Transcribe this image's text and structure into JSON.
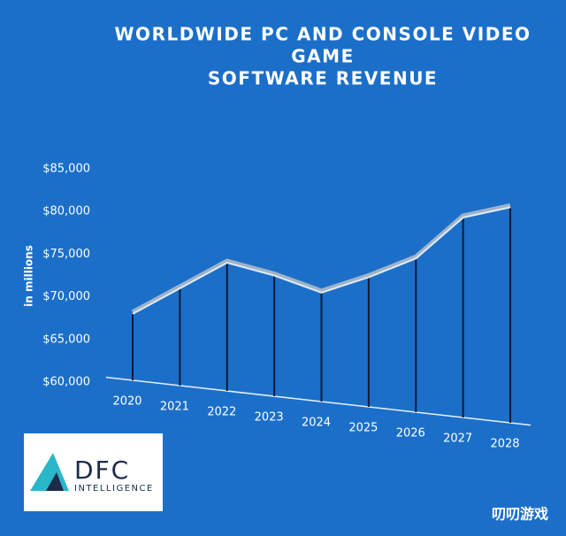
{
  "chart_data": {
    "type": "line",
    "title": [
      "WORLDWIDE PC AND CONSOLE VIDEO",
      "GAME",
      "SOFTWARE REVENUE"
    ],
    "y_label": "in millions",
    "categories": [
      "2020",
      "2021",
      "2022",
      "2023",
      "2024",
      "2025",
      "2026",
      "2027",
      "2028"
    ],
    "series": [
      {
        "name": "Software revenue",
        "color": "#dfeaf5",
        "values": [
          68000,
          71000,
          74000,
          72500,
          70500,
          72300,
          74500,
          79300,
          80500
        ]
      }
    ],
    "ylim": [
      60000,
      85000
    ],
    "yticks": [
      {
        "value": 60000,
        "label": "$60,000"
      },
      {
        "value": 65000,
        "label": "$65,000"
      },
      {
        "value": 70000,
        "label": "$70,000"
      },
      {
        "value": 75000,
        "label": "$75,000"
      },
      {
        "value": 80000,
        "label": "$80,000"
      },
      {
        "value": 85000,
        "label": "$85,000"
      }
    ],
    "logo": {
      "name": "DFC",
      "sub": "INTELLIGENCE"
    },
    "watermark": "叨叨游戏"
  }
}
